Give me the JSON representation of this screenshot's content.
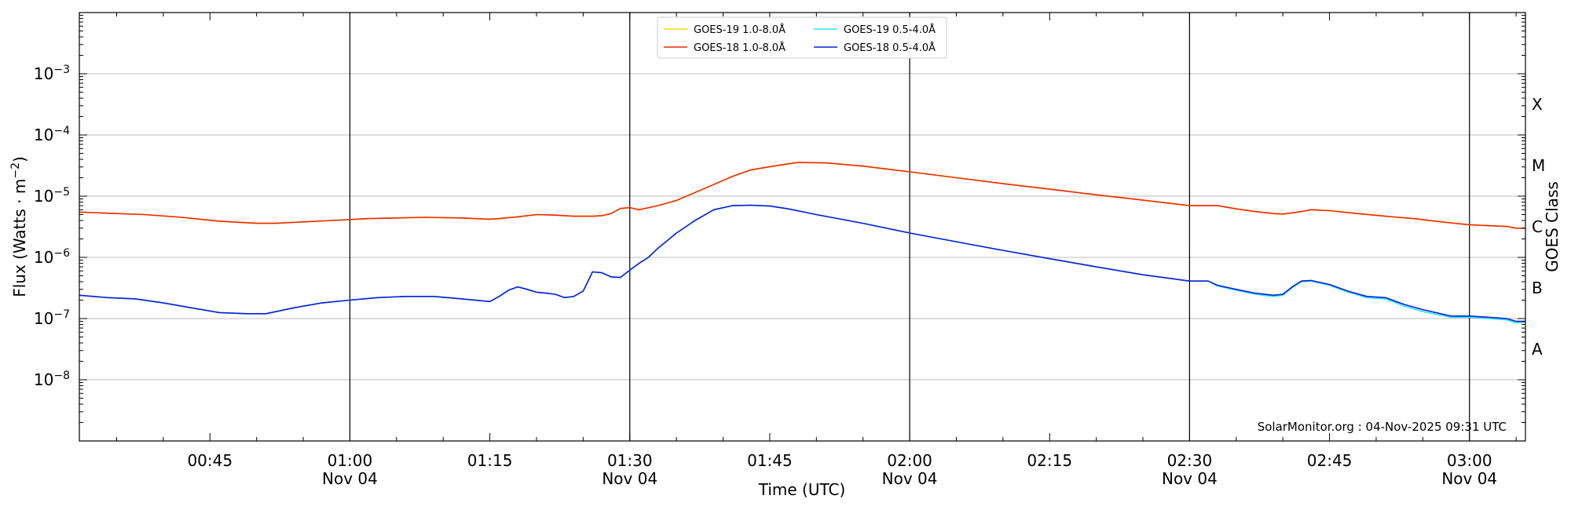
{
  "chart_data": {
    "type": "line",
    "title": "",
    "xlabel": "Time (UTC)",
    "ylabel": "Flux (Watts · m",
    "ylabel_superscript": "−2",
    "ylabel_suffix": ")",
    "y2label": "GOES Class",
    "yscale": "log",
    "ylim": [
      1e-09,
      0.01
    ],
    "xlim": [
      "00:31",
      "03:06"
    ],
    "y_ticks": [
      {
        "value": 1e-08,
        "base": "10",
        "exp": "−8"
      },
      {
        "value": 1e-07,
        "base": "10",
        "exp": "−7"
      },
      {
        "value": 1e-06,
        "base": "10",
        "exp": "−6"
      },
      {
        "value": 1e-05,
        "base": "10",
        "exp": "−5"
      },
      {
        "value": 0.0001,
        "base": "10",
        "exp": "−4"
      },
      {
        "value": 0.001,
        "base": "10",
        "exp": "−3"
      }
    ],
    "x_ticks": [
      {
        "t": "00:45",
        "label": "00:45",
        "date": ""
      },
      {
        "t": "01:00",
        "label": "01:00",
        "date": "Nov 04"
      },
      {
        "t": "01:15",
        "label": "01:15",
        "date": ""
      },
      {
        "t": "01:30",
        "label": "01:30",
        "date": "Nov 04"
      },
      {
        "t": "01:45",
        "label": "01:45",
        "date": ""
      },
      {
        "t": "02:00",
        "label": "02:00",
        "date": "Nov 04"
      },
      {
        "t": "02:15",
        "label": "02:15",
        "date": ""
      },
      {
        "t": "02:30",
        "label": "02:30",
        "date": "Nov 04"
      },
      {
        "t": "02:45",
        "label": "02:45",
        "date": ""
      },
      {
        "t": "03:00",
        "label": "03:00",
        "date": "Nov 04"
      }
    ],
    "vlines": [
      "01:00",
      "01:30",
      "02:00",
      "02:30",
      "03:00"
    ],
    "goes_classes": [
      {
        "label": "A",
        "center": 3.16e-08
      },
      {
        "label": "B",
        "center": 3.16e-07
      },
      {
        "label": "C",
        "center": 3.16e-06
      },
      {
        "label": "M",
        "center": 3.16e-05
      },
      {
        "label": "X",
        "center": 0.000316
      }
    ],
    "legend_placement": "top-center",
    "grid": "horizontal",
    "credit": "SolarMonitor.org : 04-Nov-2025 09:31 UTC",
    "series": [
      {
        "name": "GOES-19 1.0-8.0Å",
        "color": "#ffd700",
        "x": [
          "00:31",
          "00:35",
          "00:38",
          "00:42",
          "00:46",
          "00:50",
          "00:52",
          "00:55",
          "00:58",
          "01:02",
          "01:05",
          "01:08",
          "01:12",
          "01:15",
          "01:16",
          "01:18",
          "01:20",
          "01:22",
          "01:24",
          "01:26",
          "01:27",
          "01:28",
          "01:29",
          "01:30",
          "01:31",
          "01:33",
          "01:35",
          "01:37",
          "01:39",
          "01:41",
          "01:43",
          "01:46",
          "01:48",
          "01:51",
          "01:55",
          "02:00",
          "02:05",
          "02:10",
          "02:15",
          "02:20",
          "02:25",
          "02:30",
          "02:31",
          "02:32",
          "02:33",
          "02:35",
          "02:37",
          "02:39",
          "02:40",
          "02:42",
          "02:43",
          "02:45",
          "02:48",
          "02:51",
          "02:54",
          "02:57",
          "03:00",
          "03:02",
          "03:04",
          "03:05",
          "03:06"
        ],
        "y": [
          5.5e-06,
          5.2e-06,
          5e-06,
          4.5e-06,
          3.9e-06,
          3.6e-06,
          3.6e-06,
          3.8e-06,
          4e-06,
          4.3e-06,
          4.4e-06,
          4.5e-06,
          4.4e-06,
          4.2e-06,
          4.3e-06,
          4.6e-06,
          5e-06,
          4.9e-06,
          4.7e-06,
          4.7e-06,
          4.8e-06,
          5.2e-06,
          6.3e-06,
          6.5e-06,
          6e-06,
          7e-06,
          8.5e-06,
          1.15e-05,
          1.55e-05,
          2.1e-05,
          2.7e-05,
          3.2e-05,
          3.55e-05,
          3.5e-05,
          3.1e-05,
          2.5e-05,
          2e-05,
          1.6e-05,
          1.3e-05,
          1.05e-05,
          8.6e-06,
          7e-06,
          7e-06,
          7e-06,
          7e-06,
          6.2e-06,
          5.6e-06,
          5.2e-06,
          5.1e-06,
          5.6e-06,
          6e-06,
          5.8e-06,
          5.2e-06,
          4.7e-06,
          4.3e-06,
          3.8e-06,
          3.4e-06,
          3.3e-06,
          3.2e-06,
          3e-06,
          3e-06
        ]
      },
      {
        "name": "GOES-18 1.0-8.0Å",
        "color": "#ee2a00",
        "x": [
          "00:31",
          "00:35",
          "00:38",
          "00:42",
          "00:46",
          "00:50",
          "00:52",
          "00:55",
          "00:58",
          "01:02",
          "01:05",
          "01:08",
          "01:12",
          "01:15",
          "01:16",
          "01:18",
          "01:20",
          "01:22",
          "01:24",
          "01:26",
          "01:27",
          "01:28",
          "01:29",
          "01:30",
          "01:31",
          "01:33",
          "01:35",
          "01:37",
          "01:39",
          "01:41",
          "01:43",
          "01:46",
          "01:48",
          "01:51",
          "01:55",
          "02:00",
          "02:05",
          "02:10",
          "02:15",
          "02:20",
          "02:25",
          "02:30",
          "02:31",
          "02:32",
          "02:33",
          "02:35",
          "02:37",
          "02:39",
          "02:40",
          "02:42",
          "02:43",
          "02:45",
          "02:48",
          "02:51",
          "02:54",
          "02:57",
          "03:00",
          "03:02",
          "03:04",
          "03:05",
          "03:06"
        ],
        "y": [
          5.5e-06,
          5.2e-06,
          5e-06,
          4.5e-06,
          3.9e-06,
          3.6e-06,
          3.6e-06,
          3.8e-06,
          4e-06,
          4.3e-06,
          4.4e-06,
          4.5e-06,
          4.4e-06,
          4.2e-06,
          4.3e-06,
          4.6e-06,
          5e-06,
          4.9e-06,
          4.7e-06,
          4.7e-06,
          4.8e-06,
          5.2e-06,
          6.3e-06,
          6.5e-06,
          6e-06,
          7e-06,
          8.5e-06,
          1.15e-05,
          1.55e-05,
          2.1e-05,
          2.7e-05,
          3.2e-05,
          3.55e-05,
          3.5e-05,
          3.1e-05,
          2.5e-05,
          2e-05,
          1.6e-05,
          1.3e-05,
          1.05e-05,
          8.6e-06,
          7e-06,
          7e-06,
          7e-06,
          7e-06,
          6.2e-06,
          5.6e-06,
          5.2e-06,
          5.1e-06,
          5.6e-06,
          6e-06,
          5.8e-06,
          5.2e-06,
          4.7e-06,
          4.3e-06,
          3.8e-06,
          3.4e-06,
          3.3e-06,
          3.2e-06,
          3e-06,
          3e-06
        ]
      },
      {
        "name": "GOES-19 0.5-4.0Å",
        "color": "#22e5f0",
        "x": [
          "00:31",
          "00:34",
          "00:37",
          "00:40",
          "00:43",
          "00:46",
          "00:49",
          "00:51",
          "00:54",
          "00:57",
          "01:00",
          "01:03",
          "01:06",
          "01:09",
          "01:12",
          "01:15",
          "01:16",
          "01:17",
          "01:18",
          "01:19",
          "01:20",
          "01:21",
          "01:22",
          "01:23",
          "01:24",
          "01:25",
          "01:26",
          "01:27",
          "01:28",
          "01:29",
          "01:30",
          "01:31",
          "01:32",
          "01:33",
          "01:35",
          "01:37",
          "01:39",
          "01:41",
          "01:43",
          "01:45",
          "01:47",
          "01:50",
          "01:55",
          "02:00",
          "02:05",
          "02:10",
          "02:15",
          "02:20",
          "02:25",
          "02:30",
          "02:31",
          "02:32",
          "02:33",
          "02:35",
          "02:37",
          "02:39",
          "02:40",
          "02:41",
          "02:42",
          "02:43",
          "02:45",
          "02:47",
          "02:49",
          "02:51",
          "02:53",
          "02:55",
          "02:58",
          "03:00",
          "03:02",
          "03:04",
          "03:05",
          "03:06"
        ],
        "y": [
          2.4e-07,
          2.2e-07,
          2.1e-07,
          1.8e-07,
          1.5e-07,
          1.25e-07,
          1.2e-07,
          1.2e-07,
          1.5e-07,
          1.8e-07,
          2e-07,
          2.2e-07,
          2.3e-07,
          2.3e-07,
          2.1e-07,
          1.9e-07,
          2.3e-07,
          2.9e-07,
          3.3e-07,
          3e-07,
          2.7e-07,
          2.6e-07,
          2.5e-07,
          2.2e-07,
          2.3e-07,
          2.8e-07,
          5.8e-07,
          5.6e-07,
          4.8e-07,
          4.7e-07,
          6.2e-07,
          8e-07,
          1e-06,
          1.4e-06,
          2.5e-06,
          4e-06,
          6e-06,
          7e-06,
          7.1e-06,
          6.9e-06,
          6.2e-06,
          5e-06,
          3.6e-06,
          2.5e-06,
          1.8e-06,
          1.3e-06,
          9.5e-07,
          7e-07,
          5.2e-07,
          4.1e-07,
          4.1e-07,
          4.1e-07,
          3.4e-07,
          2.9e-07,
          2.5e-07,
          2.3e-07,
          2.4e-07,
          3.2e-07,
          4e-07,
          4.1e-07,
          3.5e-07,
          2.7e-07,
          2.2e-07,
          2.1e-07,
          1.6e-07,
          1.3e-07,
          1.05e-07,
          1.05e-07,
          1e-07,
          9.5e-08,
          8.5e-08,
          8.7e-08
        ]
      },
      {
        "name": "GOES-18 0.5-4.0Å",
        "color": "#0a1fdc",
        "x": [
          "00:31",
          "00:34",
          "00:37",
          "00:40",
          "00:43",
          "00:46",
          "00:49",
          "00:51",
          "00:54",
          "00:57",
          "01:00",
          "01:03",
          "01:06",
          "01:09",
          "01:12",
          "01:15",
          "01:16",
          "01:17",
          "01:18",
          "01:19",
          "01:20",
          "01:21",
          "01:22",
          "01:23",
          "01:24",
          "01:25",
          "01:26",
          "01:27",
          "01:28",
          "01:29",
          "01:30",
          "01:31",
          "01:32",
          "01:33",
          "01:35",
          "01:37",
          "01:39",
          "01:41",
          "01:43",
          "01:45",
          "01:47",
          "01:50",
          "01:55",
          "02:00",
          "02:05",
          "02:10",
          "02:15",
          "02:20",
          "02:25",
          "02:30",
          "02:31",
          "02:32",
          "02:33",
          "02:35",
          "02:37",
          "02:39",
          "02:40",
          "02:41",
          "02:42",
          "02:43",
          "02:45",
          "02:47",
          "02:49",
          "02:51",
          "02:53",
          "02:55",
          "02:58",
          "03:00",
          "03:02",
          "03:04",
          "03:05",
          "03:06"
        ],
        "y": [
          2.4e-07,
          2.2e-07,
          2.1e-07,
          1.8e-07,
          1.5e-07,
          1.25e-07,
          1.2e-07,
          1.2e-07,
          1.5e-07,
          1.8e-07,
          2e-07,
          2.2e-07,
          2.3e-07,
          2.3e-07,
          2.1e-07,
          1.9e-07,
          2.3e-07,
          2.9e-07,
          3.3e-07,
          3e-07,
          2.7e-07,
          2.6e-07,
          2.5e-07,
          2.2e-07,
          2.3e-07,
          2.8e-07,
          5.8e-07,
          5.6e-07,
          4.8e-07,
          4.7e-07,
          6.2e-07,
          8e-07,
          1e-06,
          1.4e-06,
          2.5e-06,
          4e-06,
          6e-06,
          7e-06,
          7.1e-06,
          6.9e-06,
          6.2e-06,
          5e-06,
          3.6e-06,
          2.5e-06,
          1.8e-06,
          1.3e-06,
          9.5e-07,
          7e-07,
          5.2e-07,
          4.1e-07,
          4.1e-07,
          4.1e-07,
          3.5e-07,
          3e-07,
          2.6e-07,
          2.4e-07,
          2.5e-07,
          3.3e-07,
          4.1e-07,
          4.2e-07,
          3.6e-07,
          2.8e-07,
          2.3e-07,
          2.2e-07,
          1.7e-07,
          1.4e-07,
          1.1e-07,
          1.1e-07,
          1.05e-07,
          1e-07,
          9e-08,
          9e-08
        ]
      }
    ]
  }
}
